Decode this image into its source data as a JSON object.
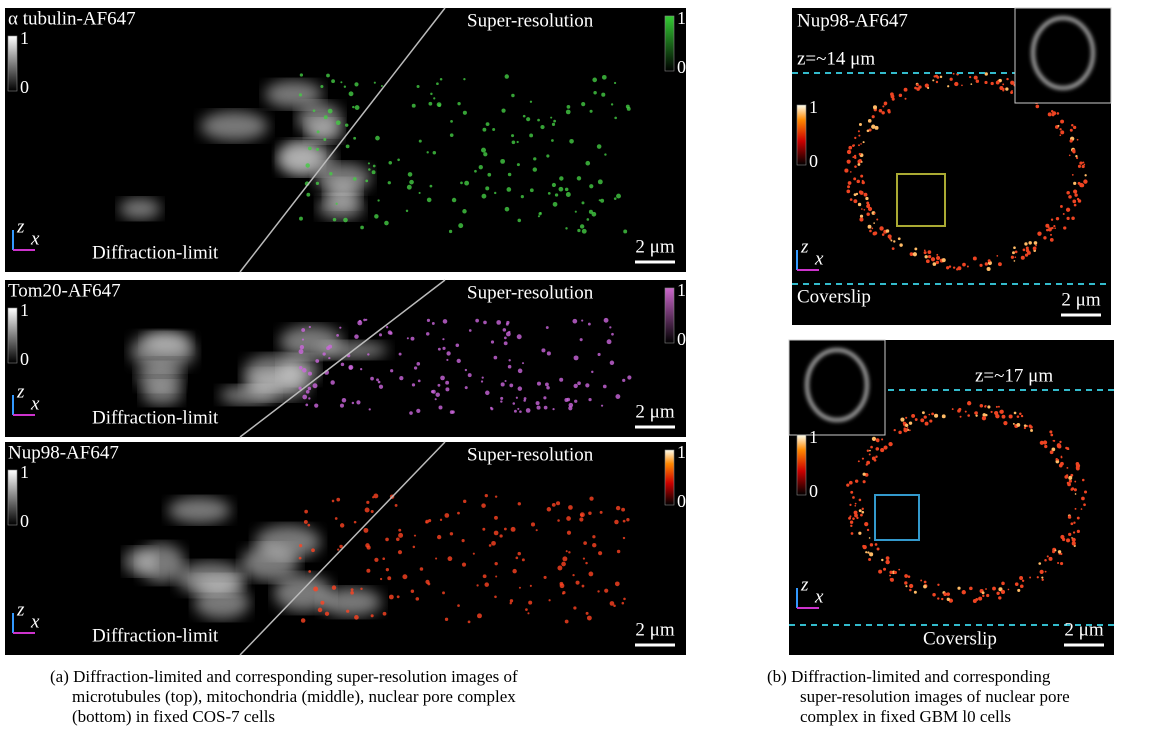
{
  "panel_a": {
    "rows": [
      {
        "label": "α tubulin-AF647",
        "left_text": "Diffraction-limit",
        "right_text": "Super-resolution",
        "gray_max": "1",
        "gray_min": "0",
        "color_max": "1",
        "color_min": "0",
        "axis_z": "z",
        "axis_x": "x",
        "scale": "2 μm"
      },
      {
        "label": "Tom20-AF647",
        "left_text": "Diffraction-limit",
        "right_text": "Super-resolution",
        "gray_max": "1",
        "gray_min": "0",
        "color_max": "1",
        "color_min": "0",
        "axis_z": "z",
        "axis_x": "x",
        "scale": "2 μm"
      },
      {
        "label": "Nup98-AF647",
        "left_text": "Diffraction-limit",
        "right_text": "Super-resolution",
        "gray_max": "1",
        "gray_min": "0",
        "color_max": "1",
        "color_min": "0",
        "axis_z": "z",
        "axis_x": "x",
        "scale": "2 μm"
      }
    ],
    "caption": [
      "(a) Diffraction-limited and corresponding super-resolution images of",
      "microtubules (top), mitochondria (middle), nuclear pore complex",
      "(bottom) in fixed COS-7 cells"
    ]
  },
  "panel_b": {
    "rows": [
      {
        "label": "Nup98-AF647",
        "depth": "z=~14 μm",
        "cbar_max": "1",
        "cbar_min": "0",
        "axis_z": "z",
        "axis_x": "x",
        "coverslip": "Coverslip",
        "scale": "2 μm"
      },
      {
        "depth": "z=~17 μm",
        "cbar_max": "1",
        "cbar_min": "0",
        "axis_z": "z",
        "axis_x": "x",
        "coverslip": "Coverslip",
        "scale": "2 μm"
      }
    ],
    "caption": [
      "(b) Diffraction-limited and corresponding",
      "super-resolution images of nuclear pore",
      "complex in fixed GBM l0 cells"
    ]
  }
}
